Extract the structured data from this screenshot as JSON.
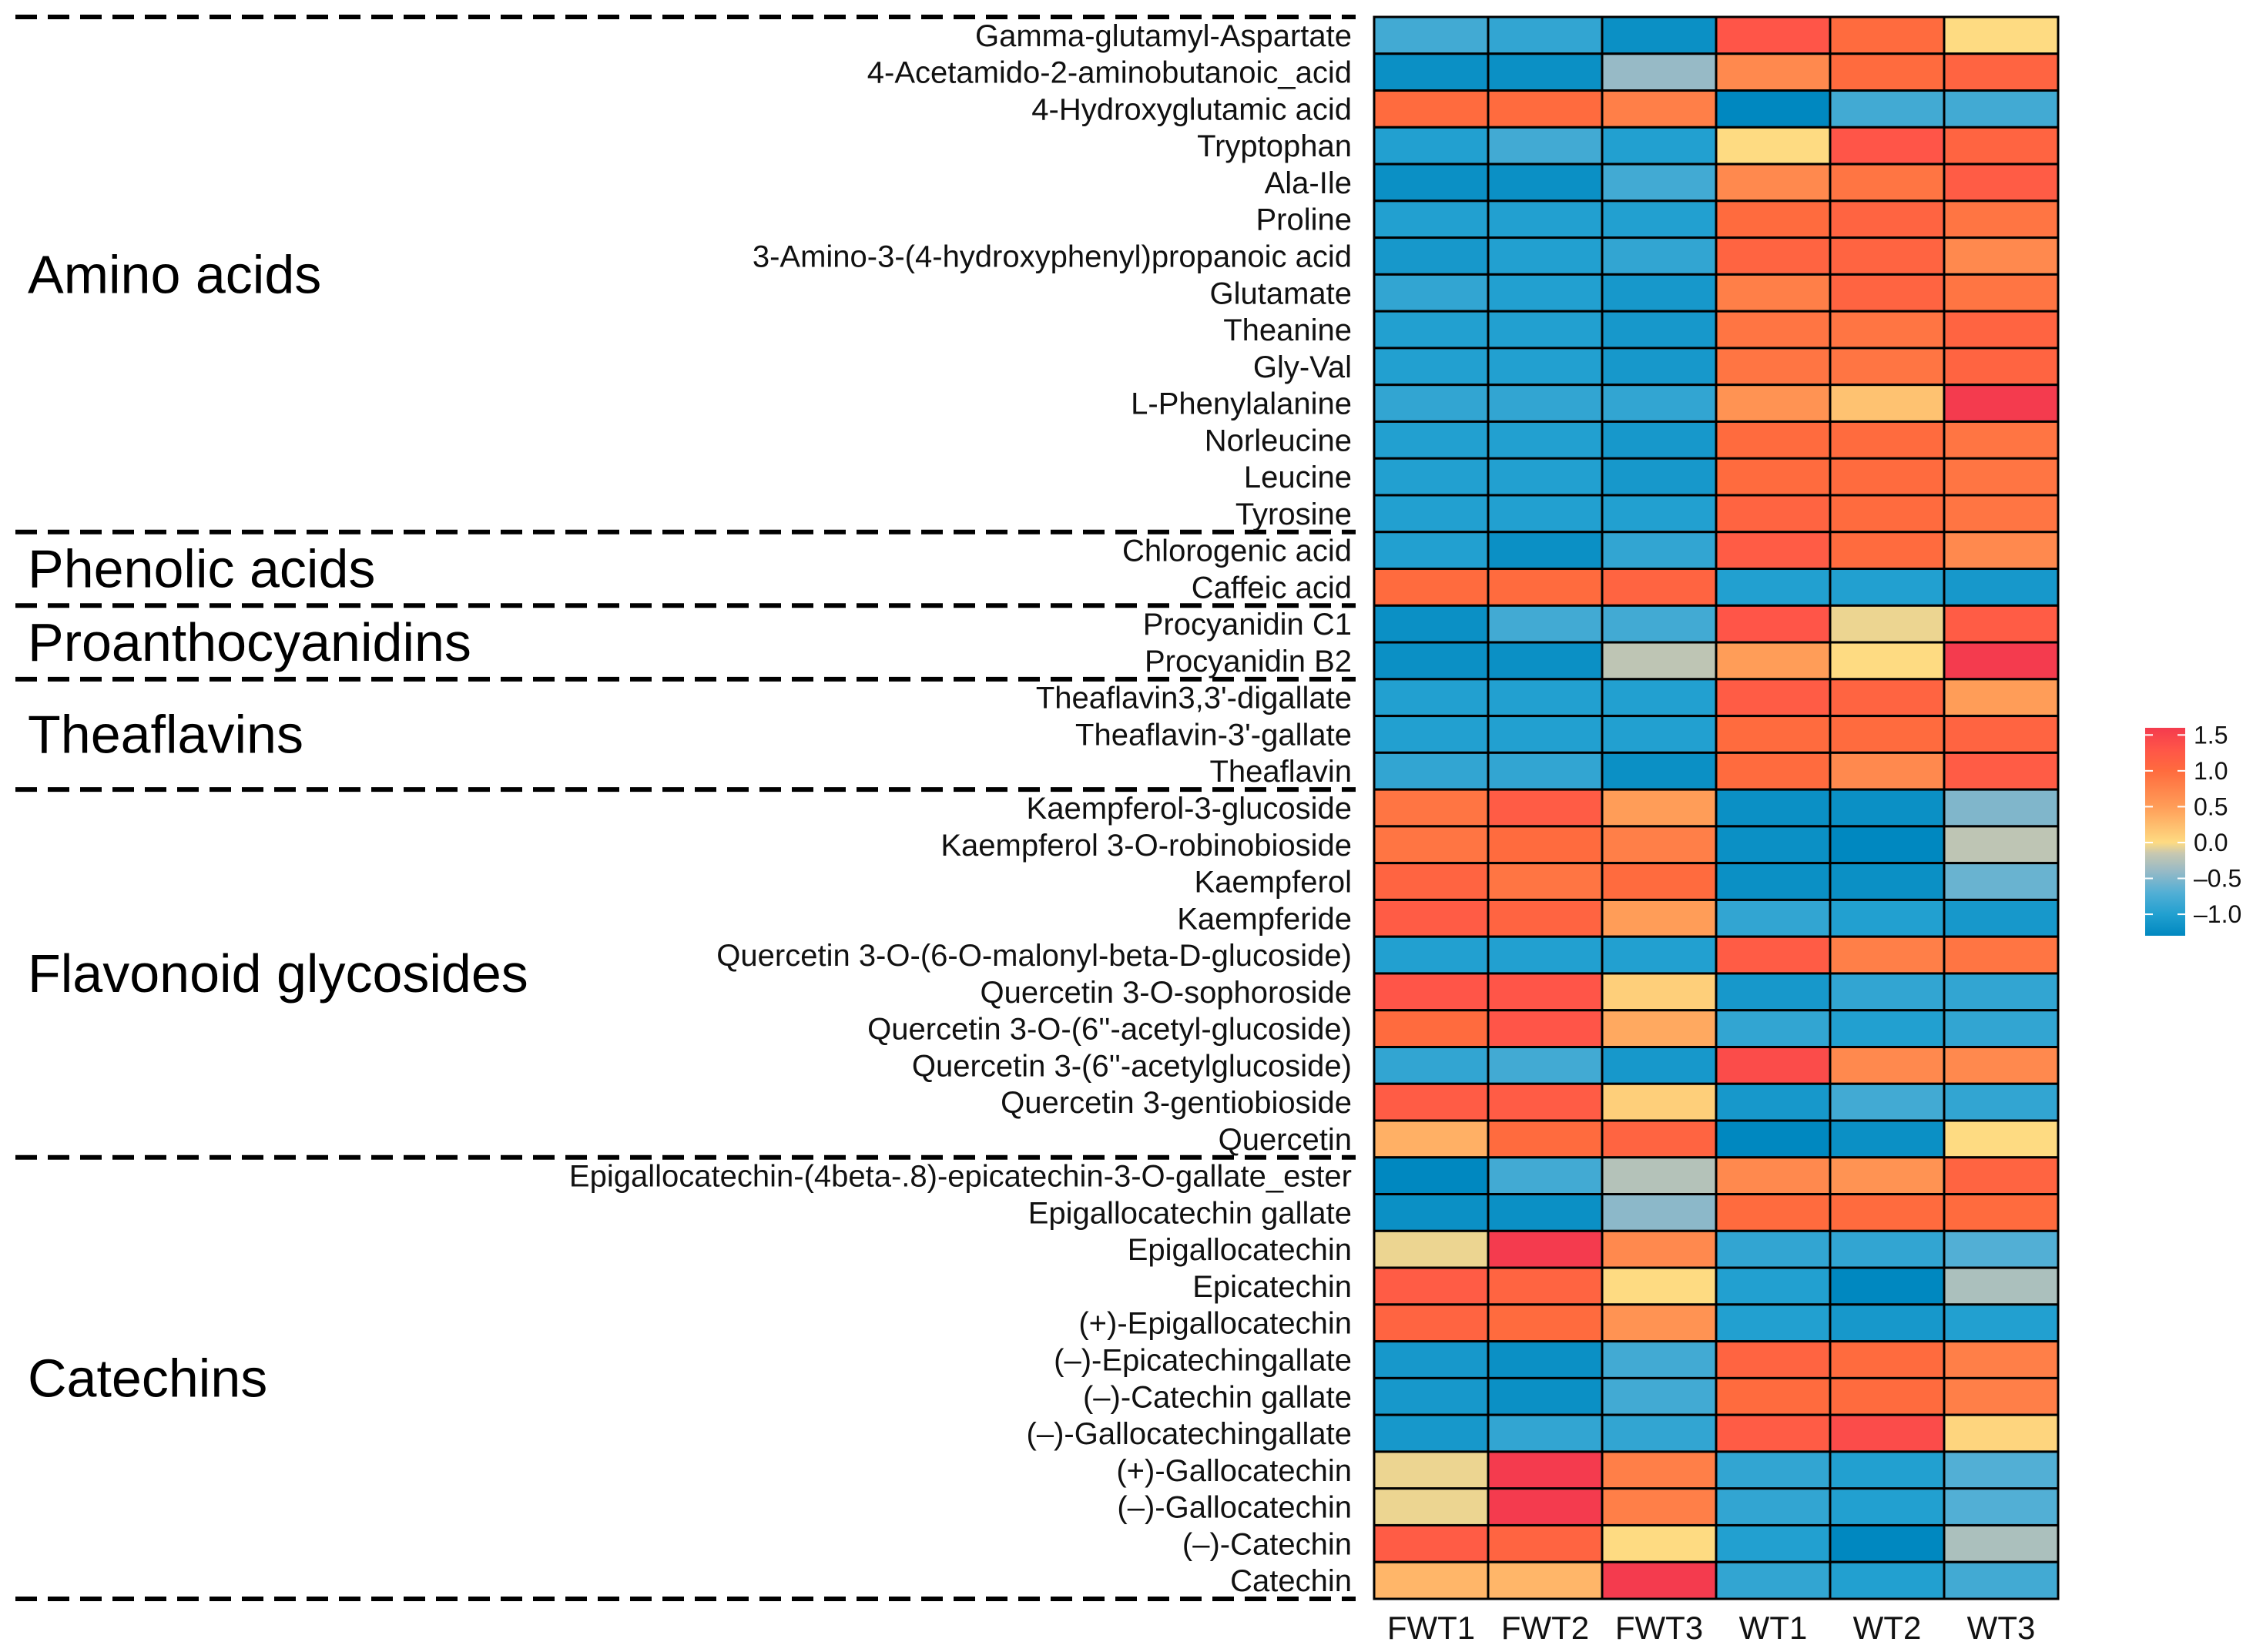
{
  "chart_data": {
    "type": "heatmap",
    "title": "",
    "columns": [
      "FWT1",
      "FWT2",
      "FWT3",
      "WT1",
      "WT2",
      "WT3"
    ],
    "rows": [
      "Gamma-glutamyl-Aspartate",
      "4-Acetamido-2-aminobutanoic_acid",
      "4-Hydroxyglutamic acid",
      "Tryptophan",
      "Ala-Ile",
      "Proline",
      "3-Amino-3-(4-hydroxyphenyl)propanoic acid",
      "Glutamate",
      "Theanine",
      "Gly-Val",
      "L-Phenylalanine",
      "Norleucine",
      "Leucine",
      "Tyrosine",
      "Chlorogenic acid",
      "Caffeic acid",
      "Procyanidin C1",
      "Procyanidin B2",
      "Theaflavin3,3'-digallate",
      "Theaflavin-3'-gallate",
      "Theaflavin",
      "Kaempferol-3-glucoside",
      "Kaempferol 3-O-robinobioside",
      "Kaempferol",
      "Kaempferide",
      "Quercetin 3-O-(6-O-malonyl-beta-D-glucoside)",
      "Quercetin 3-O-sophoroside",
      "Quercetin 3-O-(6''-acetyl-glucoside)",
      "Quercetin 3-(6''-acetylglucoside)",
      "Quercetin 3-gentiobioside",
      "Quercetin",
      "Epigallocatechin-(4beta-.8)-epicatechin-3-O-gallate_ester",
      "Epigallocatechin gallate",
      "Epigallocatechin",
      "Epicatechin",
      "(+)-Epigallocatechin",
      "(–)-Epicatechingallate",
      "(–)-Catechin gallate",
      "(–)-Gallocatechingallate",
      "(+)-Gallocatechin",
      "(–)-Gallocatechin",
      "(–)-Catechin",
      "Catechin"
    ],
    "groups": [
      {
        "name": "Amino acids",
        "start": 0,
        "end": 13
      },
      {
        "name": "Phenolic acids",
        "start": 14,
        "end": 15
      },
      {
        "name": "Proanthocyanidins",
        "start": 16,
        "end": 17
      },
      {
        "name": "Theaflavins",
        "start": 18,
        "end": 20
      },
      {
        "name": "Flavonoid glycosides",
        "start": 21,
        "end": 30
      },
      {
        "name": "Catechins",
        "start": 31,
        "end": 42
      }
    ],
    "values": [
      [
        -0.8,
        -0.9,
        -1.2,
        1.3,
        1.0,
        0.0
      ],
      [
        -1.2,
        -1.2,
        -0.4,
        0.7,
        1.0,
        1.1
      ],
      [
        1.0,
        1.0,
        0.8,
        -1.3,
        -0.8,
        -0.8
      ],
      [
        -1.0,
        -0.8,
        -1.0,
        0.0,
        1.3,
        1.1
      ],
      [
        -1.2,
        -1.2,
        -0.8,
        0.7,
        0.9,
        1.2
      ],
      [
        -1.0,
        -1.0,
        -1.0,
        1.0,
        1.1,
        0.9
      ],
      [
        -1.1,
        -1.0,
        -0.9,
        1.1,
        1.1,
        0.7
      ],
      [
        -0.9,
        -1.0,
        -1.1,
        0.8,
        1.1,
        0.9
      ],
      [
        -1.0,
        -1.0,
        -1.1,
        0.9,
        0.9,
        1.1
      ],
      [
        -1.0,
        -1.0,
        -1.1,
        0.9,
        0.9,
        1.1
      ],
      [
        -0.9,
        -0.9,
        -0.9,
        0.6,
        0.2,
        1.6
      ],
      [
        -1.0,
        -1.0,
        -1.1,
        1.0,
        1.0,
        0.9
      ],
      [
        -1.0,
        -1.0,
        -1.1,
        1.0,
        1.0,
        0.9
      ],
      [
        -1.0,
        -1.0,
        -1.0,
        1.1,
        1.0,
        0.9
      ],
      [
        -1.0,
        -1.2,
        -0.9,
        1.2,
        1.0,
        0.7
      ],
      [
        1.0,
        1.0,
        1.1,
        -1.0,
        -1.0,
        -1.1
      ],
      [
        -1.2,
        -0.8,
        -0.8,
        1.3,
        -0.05,
        1.2
      ],
      [
        -1.2,
        -1.2,
        -0.2,
        0.5,
        0.0,
        1.6
      ],
      [
        -1.0,
        -1.0,
        -1.0,
        1.2,
        1.1,
        0.5
      ],
      [
        -1.0,
        -1.0,
        -1.0,
        1.0,
        1.0,
        1.1
      ],
      [
        -0.9,
        -0.9,
        -1.2,
        1.0,
        0.7,
        1.2
      ],
      [
        0.9,
        1.2,
        0.5,
        -1.2,
        -1.2,
        -0.5
      ],
      [
        0.9,
        1.0,
        0.8,
        -1.2,
        -1.3,
        -0.2
      ],
      [
        1.1,
        0.9,
        1.0,
        -1.2,
        -1.2,
        -0.6
      ],
      [
        1.2,
        1.1,
        0.5,
        -0.9,
        -1.0,
        -1.1
      ],
      [
        -1.0,
        -1.0,
        -1.0,
        1.2,
        0.8,
        0.9
      ],
      [
        1.3,
        1.3,
        0.1,
        -1.1,
        -0.9,
        -0.9
      ],
      [
        1.0,
        1.3,
        0.4,
        -0.9,
        -1.0,
        -0.9
      ],
      [
        -0.9,
        -0.8,
        -1.1,
        1.4,
        0.7,
        0.7
      ],
      [
        1.2,
        1.2,
        0.1,
        -1.1,
        -0.8,
        -0.9
      ],
      [
        0.35,
        1.0,
        1.1,
        -1.3,
        -1.2,
        0.0
      ],
      [
        -1.3,
        -0.8,
        -0.25,
        0.7,
        0.6,
        1.1
      ],
      [
        -1.2,
        -1.2,
        -0.45,
        1.0,
        1.0,
        1.0
      ],
      [
        -0.05,
        1.6,
        0.7,
        -0.9,
        -0.9,
        -0.7
      ],
      [
        1.2,
        1.1,
        0.0,
        -1.0,
        -1.3,
        -0.3
      ],
      [
        1.1,
        1.0,
        0.6,
        -1.0,
        -1.1,
        -1.0
      ],
      [
        -1.1,
        -1.2,
        -0.8,
        1.1,
        1.0,
        0.8
      ],
      [
        -1.1,
        -1.2,
        -0.8,
        1.0,
        1.0,
        0.8
      ],
      [
        -1.1,
        -0.9,
        -0.9,
        1.2,
        1.4,
        0.05
      ],
      [
        -0.05,
        1.6,
        0.8,
        -0.9,
        -1.0,
        -0.7
      ],
      [
        -0.05,
        1.6,
        0.8,
        -0.9,
        -1.0,
        -0.7
      ],
      [
        1.2,
        1.1,
        0.0,
        -1.0,
        -1.3,
        -0.3
      ],
      [
        0.3,
        0.3,
        1.6,
        -0.9,
        -1.0,
        -0.8
      ]
    ],
    "legend": {
      "placement": "right",
      "ticks": [
        "1.5",
        "1.0",
        "0.5",
        "0.0",
        "–0.5",
        "–1.0"
      ],
      "tick_values": [
        1.5,
        1.0,
        0.5,
        0.0,
        -0.5,
        -1.0
      ],
      "range": [
        -1.3,
        1.6
      ]
    },
    "colorscale": [
      {
        "v": -1.3,
        "c": "#0088c0"
      },
      {
        "v": -1.0,
        "c": "#22a0d0"
      },
      {
        "v": -0.7,
        "c": "#52afd5"
      },
      {
        "v": -0.4,
        "c": "#97bac6"
      },
      {
        "v": -0.15,
        "c": "#c8c8b0"
      },
      {
        "v": 0.0,
        "c": "#fedb82"
      },
      {
        "v": 0.5,
        "c": "#ff9d58"
      },
      {
        "v": 1.0,
        "c": "#ff6b3e"
      },
      {
        "v": 1.3,
        "c": "#ff5548"
      },
      {
        "v": 1.6,
        "c": "#f43b4e"
      }
    ]
  }
}
